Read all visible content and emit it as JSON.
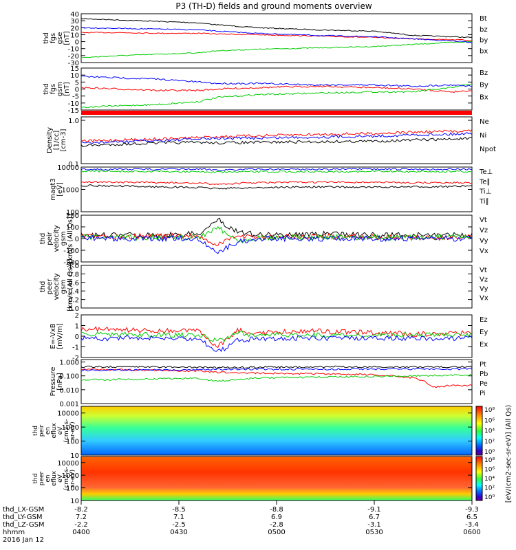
{
  "chart_data": {
    "type": "line",
    "title": "P3 (TH-D) fields and ground moments overview",
    "x_axis_rows": {
      "labels": [
        "thd_LX-GSM",
        "thd_LY-GSM",
        "thd_LZ-GSM",
        "hhmm",
        "2016 Jan 12"
      ],
      "ticks": [
        [
          "-8.2",
          "7.2",
          "-2.2",
          "0400"
        ],
        [
          "-8.5",
          "7.1",
          "-2.5",
          "0430"
        ],
        [
          "-8.8",
          "6.9",
          "-2.8",
          "0500"
        ],
        [
          "-9.1",
          "6.7",
          "-3.1",
          "0530"
        ],
        [
          "-9.3",
          "6.5",
          "-3.4",
          "0600"
        ]
      ]
    },
    "panels": [
      {
        "ylabel": [
          "thd",
          "fgs",
          "gse",
          "[nT]"
        ],
        "yticks": [
          "40",
          "30",
          "20",
          "10",
          "0",
          "-10",
          "-20",
          "-30"
        ],
        "ylim": [
          -30,
          40
        ],
        "log": false,
        "series": [
          {
            "name": "Bt",
            "color": "#000000",
            "x": [
              0,
              0.1,
              0.2,
              0.3,
              0.35,
              0.45,
              0.6,
              0.75,
              0.85,
              0.95,
              1
            ],
            "y": [
              33,
              31,
              29,
              27,
              24,
              20,
              17,
              15,
              9,
              7,
              6
            ]
          },
          {
            "name": "bz",
            "color": "#ff0000",
            "x": [
              0,
              0.1,
              0.2,
              0.3,
              0.35,
              0.45,
              0.6,
              0.75,
              0.85,
              0.95,
              1
            ],
            "y": [
              13,
              13,
              12,
              12,
              11,
              10,
              8,
              6,
              4,
              3,
              2
            ]
          },
          {
            "name": "by",
            "color": "#00cc00",
            "x": [
              0,
              0.1,
              0.2,
              0.3,
              0.35,
              0.45,
              0.6,
              0.75,
              0.85,
              0.95,
              1
            ],
            "y": [
              -23,
              -20,
              -18,
              -16,
              -13,
              -11,
              -9,
              -7,
              -4,
              -1,
              0
            ]
          },
          {
            "name": "bx",
            "color": "#0000ff",
            "x": [
              0,
              0.1,
              0.2,
              0.3,
              0.35,
              0.45,
              0.6,
              0.75,
              0.85,
              0.95,
              1
            ],
            "y": [
              20,
              19,
              18,
              17,
              15,
              12,
              9,
              7,
              4,
              1,
              -1
            ]
          }
        ]
      },
      {
        "ylabel": [
          "thd",
          "fgs",
          "gsm",
          "[nT]"
        ],
        "yticks": [
          "15",
          "10",
          "5",
          "0",
          "-5",
          "-10",
          "-15"
        ],
        "ylim": [
          -15,
          15
        ],
        "log": false,
        "series": [
          {
            "name": "Bz",
            "color": "#ff0000",
            "x": [
              0,
              0.1,
              0.2,
              0.3,
              0.35,
              0.45,
              0.6,
              0.75,
              0.85,
              0.95,
              1
            ],
            "y": [
              1,
              0,
              -1,
              -1,
              0,
              1,
              2,
              1,
              0,
              -2,
              -1
            ]
          },
          {
            "name": "By",
            "color": "#00cc00",
            "x": [
              0,
              0.1,
              0.2,
              0.3,
              0.35,
              0.45,
              0.6,
              0.75,
              0.85,
              0.95,
              1
            ],
            "y": [
              -13,
              -12,
              -11,
              -9,
              -6,
              -4,
              -3,
              -2,
              -2,
              1,
              4
            ]
          },
          {
            "name": "Bx",
            "color": "#0000ff",
            "x": [
              0,
              0.1,
              0.2,
              0.3,
              0.35,
              0.45,
              0.6,
              0.75,
              0.85,
              0.95,
              1
            ],
            "y": [
              9,
              8,
              7,
              5,
              4,
              4,
              3,
              3,
              2,
              3,
              2
            ]
          }
        ]
      },
      {
        "ylabel": [
          "Density",
          "[1/cc]",
          "[cm-3]"
        ],
        "yticks": [
          "1.0",
          "0.1"
        ],
        "ylim": [
          0.1,
          1.2
        ],
        "log": true,
        "series": [
          {
            "name": "Ne",
            "color": "#ff0000",
            "x": [
              0,
              0.1,
              0.2,
              0.3,
              0.35,
              0.45,
              0.6,
              0.75,
              0.85,
              0.95,
              1
            ],
            "y": [
              0.33,
              0.35,
              0.37,
              0.4,
              0.42,
              0.44,
              0.47,
              0.5,
              0.53,
              0.56,
              0.58
            ]
          },
          {
            "name": "Ni",
            "color": "#000000",
            "x": [
              0,
              0.1,
              0.2,
              0.3,
              0.35,
              0.45,
              0.6,
              0.75,
              0.85,
              0.95,
              1
            ],
            "y": [
              0.26,
              0.28,
              0.3,
              0.31,
              0.3,
              0.31,
              0.32,
              0.33,
              0.35,
              0.37,
              0.38
            ]
          },
          {
            "name": "Npot",
            "color": "#0000ff",
            "x": [
              0,
              0.1,
              0.2,
              0.3,
              0.35,
              0.45,
              0.6,
              0.75,
              0.85,
              0.95,
              1
            ],
            "y": [
              0.3,
              0.32,
              0.34,
              0.37,
              0.38,
              0.39,
              0.41,
              0.43,
              0.46,
              0.48,
              0.5
            ]
          }
        ]
      },
      {
        "ylabel": [
          "magt3",
          "[eV]"
        ],
        "yticks": [
          "10000",
          "1000",
          "100"
        ],
        "ylim": [
          100,
          10000
        ],
        "log": true,
        "series": [
          {
            "name": "Te⊥",
            "color": "#ff0000",
            "x": [
              0,
              0.1,
              0.2,
              0.3,
              0.35,
              0.45,
              0.6,
              0.75,
              0.85,
              0.95,
              1
            ],
            "y": [
              2200,
              2100,
              2000,
              1900,
              1700,
              2000,
              2100,
              2100,
              2000,
              2000,
              2000
            ]
          },
          {
            "name": "Te∥",
            "color": "#000000",
            "x": [
              0,
              0.1,
              0.2,
              0.3,
              0.35,
              0.45,
              0.6,
              0.75,
              0.85,
              0.95,
              1
            ],
            "y": [
              1500,
              1400,
              1300,
              1200,
              1100,
              1200,
              1300,
              1250,
              1300,
              1350,
              1400
            ]
          },
          {
            "name": "Ti⊥",
            "color": "#0000ff",
            "x": [
              0,
              0.1,
              0.2,
              0.3,
              0.35,
              0.45,
              0.6,
              0.75,
              0.85,
              0.95,
              1
            ],
            "y": [
              8000,
              8000,
              8000,
              8000,
              7500,
              8000,
              8000,
              8000,
              8000,
              8000,
              8000
            ]
          },
          {
            "name": "Ti∥",
            "color": "#00cc00",
            "x": [
              0,
              0.1,
              0.2,
              0.3,
              0.35,
              0.45,
              0.6,
              0.75,
              0.85,
              0.95,
              1
            ],
            "y": [
              6500,
              6400,
              6300,
              6200,
              5800,
              6200,
              6300,
              6300,
              6300,
              6300,
              6300
            ]
          }
        ]
      },
      {
        "ylabel": [
          "thd",
          "peir",
          "velocity",
          "gsm",
          "[km/s (All Qs)]"
        ],
        "yticks": [
          "200",
          "100",
          "0",
          "-100",
          "-200"
        ],
        "ylim": [
          -200,
          200
        ],
        "log": false,
        "series": [
          {
            "name": "Vt",
            "color": "#000000",
            "x": [
              0,
              0.1,
              0.2,
              0.3,
              0.35,
              0.4,
              0.45,
              0.6,
              0.75,
              0.85,
              1
            ],
            "y": [
              30,
              30,
              30,
              40,
              160,
              60,
              30,
              40,
              30,
              30,
              30
            ]
          },
          {
            "name": "Vz",
            "color": "#ff0000",
            "x": [
              0,
              0.1,
              0.2,
              0.3,
              0.35,
              0.4,
              0.45,
              0.6,
              0.75,
              0.85,
              1
            ],
            "y": [
              20,
              20,
              20,
              20,
              -60,
              30,
              10,
              20,
              10,
              10,
              10
            ]
          },
          {
            "name": "Vy",
            "color": "#00cc00",
            "x": [
              0,
              0.1,
              0.2,
              0.3,
              0.35,
              0.4,
              0.45,
              0.6,
              0.75,
              0.85,
              1
            ],
            "y": [
              10,
              10,
              10,
              10,
              100,
              -20,
              10,
              10,
              10,
              10,
              10
            ]
          },
          {
            "name": "Vx",
            "color": "#0000ff",
            "x": [
              0,
              0.1,
              0.2,
              0.3,
              0.35,
              0.4,
              0.45,
              0.6,
              0.75,
              0.85,
              1
            ],
            "y": [
              0,
              0,
              0,
              0,
              -120,
              -30,
              0,
              0,
              0,
              0,
              0
            ]
          }
        ]
      },
      {
        "ylabel": [
          "thd",
          "peer",
          "velocity",
          "gsm",
          "[km/s (All Qs)]"
        ],
        "yticks": [
          "1.0",
          "0.8",
          "0.6",
          "0.4",
          "0.2",
          "0.0"
        ],
        "ylim": [
          0,
          1
        ],
        "log": false,
        "series": [
          {
            "name": "Vt",
            "color": "#000000",
            "x": [],
            "y": []
          },
          {
            "name": "Vz",
            "color": "#ff0000",
            "x": [],
            "y": []
          },
          {
            "name": "Vy",
            "color": "#00cc00",
            "x": [],
            "y": []
          },
          {
            "name": "Vx",
            "color": "#0000ff",
            "x": [],
            "y": []
          }
        ]
      },
      {
        "ylabel": [
          "E=-VxB",
          "[mV/m]"
        ],
        "yticks": [
          "2",
          "1",
          "0",
          "-1",
          "-2"
        ],
        "ylim": [
          -2,
          2
        ],
        "log": false,
        "series": [
          {
            "name": "Ez",
            "color": "#ff0000",
            "x": [
              0,
              0.1,
              0.2,
              0.3,
              0.35,
              0.4,
              0.45,
              0.6,
              0.75,
              0.85,
              1
            ],
            "y": [
              0.7,
              0.6,
              0.5,
              0.5,
              -1,
              0.6,
              0.3,
              0.5,
              0.3,
              0.2,
              0.3
            ]
          },
          {
            "name": "Ey",
            "color": "#00cc00",
            "x": [
              0,
              0.1,
              0.2,
              0.3,
              0.35,
              0.4,
              0.45,
              0.6,
              0.75,
              0.85,
              1
            ],
            "y": [
              0.2,
              0.2,
              0.1,
              0.1,
              -0.5,
              0.3,
              0.1,
              0.1,
              0.1,
              0.1,
              0.1
            ]
          },
          {
            "name": "Ex",
            "color": "#0000ff",
            "x": [
              0,
              0.1,
              0.2,
              0.3,
              0.35,
              0.4,
              0.45,
              0.6,
              0.75,
              0.85,
              1
            ],
            "y": [
              -0.2,
              -0.2,
              -0.2,
              -0.2,
              -1.5,
              -0.4,
              -0.2,
              -0.2,
              -0.2,
              -0.2,
              -0.2
            ]
          }
        ]
      },
      {
        "ylabel": [
          "Pressure",
          "[nPa]"
        ],
        "yticks": [
          "1.000",
          "0.100",
          "0.010",
          "0.001"
        ],
        "ylim": [
          0.001,
          1.5
        ],
        "log": true,
        "series": [
          {
            "name": "Pt",
            "color": "#000000",
            "x": [
              0,
              0.1,
              0.2,
              0.3,
              0.35,
              0.45,
              0.6,
              0.75,
              0.85,
              0.95,
              1
            ],
            "y": [
              0.45,
              0.45,
              0.44,
              0.42,
              0.4,
              0.42,
              0.45,
              0.45,
              0.44,
              0.45,
              0.46
            ]
          },
          {
            "name": "Pb",
            "color": "#ff0000",
            "x": [
              0,
              0.1,
              0.2,
              0.3,
              0.35,
              0.45,
              0.6,
              0.75,
              0.85,
              0.9,
              0.95,
              1
            ],
            "y": [
              0.3,
              0.28,
              0.25,
              0.22,
              0.18,
              0.16,
              0.14,
              0.12,
              0.07,
              0.015,
              0.02,
              0.02
            ]
          },
          {
            "name": "Pe",
            "color": "#00cc00",
            "x": [
              0,
              0.1,
              0.2,
              0.3,
              0.35,
              0.45,
              0.6,
              0.75,
              0.85,
              0.95,
              1
            ],
            "y": [
              0.05,
              0.055,
              0.06,
              0.065,
              0.04,
              0.07,
              0.08,
              0.09,
              0.1,
              0.11,
              0.12
            ]
          },
          {
            "name": "Pi",
            "color": "#0000ff",
            "x": [
              0,
              0.1,
              0.2,
              0.3,
              0.35,
              0.45,
              0.6,
              0.75,
              0.85,
              0.95,
              1
            ],
            "y": [
              0.25,
              0.26,
              0.27,
              0.28,
              0.29,
              0.3,
              0.3,
              0.31,
              0.31,
              0.31,
              0.32
            ]
          }
        ]
      }
    ],
    "spectrograms": [
      {
        "ylabel": [
          "thd",
          "peir",
          "en",
          "eflux",
          "eV",
          "(cm2-s-",
          "sr-eV)"
        ],
        "yticks": [
          "10000",
          "1000",
          "100",
          "10"
        ],
        "ylim": [
          10,
          30000
        ],
        "log": true
      },
      {
        "ylabel": [
          "thd",
          "peer",
          "en",
          "eflux",
          "eV",
          "(cm2-s-",
          "sr-eV)"
        ],
        "yticks": [
          "10000",
          "1000",
          "100",
          "10"
        ],
        "ylim": [
          10,
          30000
        ],
        "log": true
      }
    ],
    "colorbar": {
      "label": "[eV/(cm2-sec-sr-eV)] (All Qs)",
      "ticks_top": [
        "10⁸",
        "10⁶",
        "10⁴",
        "10²",
        "10⁰"
      ],
      "ticks_bottom": [
        "10⁸",
        "10⁶",
        "10⁴",
        "10²",
        "10⁰"
      ]
    }
  }
}
